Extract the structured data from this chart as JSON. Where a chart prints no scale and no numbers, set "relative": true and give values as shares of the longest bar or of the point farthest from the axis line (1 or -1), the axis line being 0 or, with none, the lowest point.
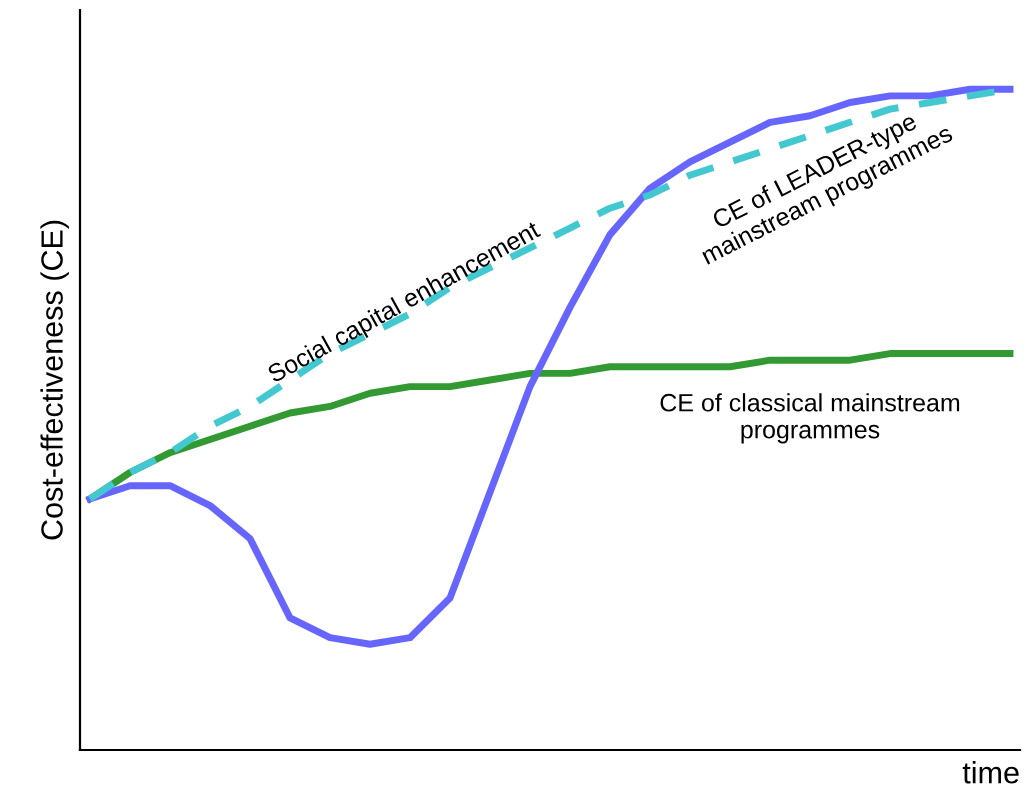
{
  "chart_data": {
    "type": "line",
    "relative": true,
    "xlabel": "time",
    "ylabel": "Cost-effectiveness (CE)",
    "legend": false,
    "categories": [
      null,
      null,
      null,
      null,
      null,
      null,
      null,
      null,
      null,
      null,
      null,
      null,
      null,
      null,
      null,
      null,
      null,
      null,
      null,
      null,
      null,
      null,
      null,
      null
    ],
    "series": [
      {
        "name": "Social capital enhancement",
        "color": "#44c8d0",
        "line_style": "dashed",
        "values": [
          0.38,
          0.42,
          0.45,
          0.49,
          0.52,
          0.56,
          0.6,
          0.63,
          0.66,
          0.7,
          0.73,
          0.76,
          0.79,
          0.82,
          0.84,
          0.87,
          0.89,
          0.91,
          0.93,
          0.95,
          0.97,
          0.98,
          0.99,
          1.0
        ]
      },
      {
        "name": "CE of LEADER-type\nmainstream programmes",
        "color": "#6666ff",
        "line_style": "solid",
        "values": [
          0.38,
          0.4,
          0.4,
          0.37,
          0.32,
          0.2,
          0.17,
          0.16,
          0.17,
          0.23,
          0.39,
          0.55,
          0.67,
          0.78,
          0.85,
          0.89,
          0.92,
          0.95,
          0.96,
          0.98,
          0.99,
          0.99,
          1.0,
          1.0
        ]
      },
      {
        "name": "CE of classical mainstream\nprogrammes",
        "color": "#339933",
        "line_style": "solid",
        "values": [
          0.38,
          0.42,
          0.45,
          0.47,
          0.49,
          0.51,
          0.52,
          0.54,
          0.55,
          0.55,
          0.56,
          0.57,
          0.57,
          0.58,
          0.58,
          0.58,
          0.58,
          0.59,
          0.59,
          0.59,
          0.6,
          0.6,
          0.6,
          0.6
        ]
      }
    ]
  }
}
